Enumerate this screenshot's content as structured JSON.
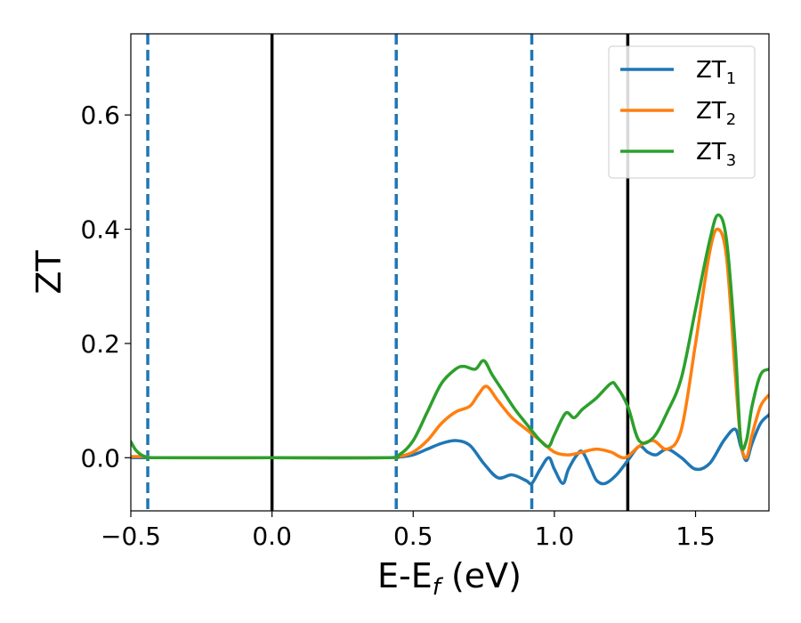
{
  "chart_data": {
    "type": "line",
    "xlabel_main": "E-E",
    "xlabel_sub": "f",
    "xlabel_unit": " (eV)",
    "ylabel": "ZT",
    "xlim": [
      -0.5,
      1.76
    ],
    "ylim": [
      -0.093,
      0.742
    ],
    "xticks": [
      -0.5,
      0.0,
      0.5,
      1.0,
      1.5
    ],
    "xtick_labels": [
      "−0.5",
      "0.0",
      "0.5",
      "1.0",
      "1.5"
    ],
    "yticks": [
      0.0,
      0.2,
      0.4,
      0.6
    ],
    "ytick_labels": [
      "0.0",
      "0.2",
      "0.4",
      "0.6"
    ],
    "grid": false,
    "legend_position": "top-right",
    "vlines": [
      {
        "x": -0.44,
        "style": "dashed",
        "color": "#1f77b4"
      },
      {
        "x": 0.0,
        "style": "solid",
        "color": "#000000"
      },
      {
        "x": 0.44,
        "style": "dashed",
        "color": "#1f77b4"
      },
      {
        "x": 0.92,
        "style": "dashed",
        "color": "#1f77b4"
      },
      {
        "x": 1.26,
        "style": "solid",
        "color": "#000000"
      }
    ],
    "series": [
      {
        "name_main": "ZT",
        "name_sub": "1",
        "color": "#1f77b4",
        "x": [
          -0.5,
          -0.45,
          -0.4,
          0.0,
          0.4,
          0.45,
          0.5,
          0.55,
          0.6,
          0.65,
          0.7,
          0.75,
          0.8,
          0.85,
          0.9,
          0.92,
          0.95,
          0.98,
          1.0,
          1.03,
          1.05,
          1.08,
          1.1,
          1.13,
          1.15,
          1.18,
          1.22,
          1.26,
          1.3,
          1.33,
          1.36,
          1.4,
          1.45,
          1.5,
          1.55,
          1.6,
          1.64,
          1.66,
          1.68,
          1.7,
          1.73,
          1.76
        ],
        "y": [
          0.0,
          0.0,
          0.0,
          0.0,
          0.0,
          0.001,
          0.005,
          0.015,
          0.025,
          0.03,
          0.022,
          -0.01,
          -0.035,
          -0.03,
          -0.04,
          -0.045,
          -0.02,
          0.0,
          -0.02,
          -0.045,
          -0.02,
          0.005,
          0.01,
          -0.02,
          -0.04,
          -0.045,
          -0.03,
          -0.005,
          0.02,
          0.01,
          0.005,
          0.015,
          0.0,
          -0.02,
          -0.01,
          0.03,
          0.05,
          0.02,
          -0.005,
          0.025,
          0.06,
          0.075
        ]
      },
      {
        "name_main": "ZT",
        "name_sub": "2",
        "color": "#ff7f0e",
        "x": [
          -0.5,
          -0.48,
          -0.45,
          -0.4,
          0.0,
          0.4,
          0.45,
          0.5,
          0.55,
          0.6,
          0.65,
          0.7,
          0.73,
          0.76,
          0.8,
          0.85,
          0.9,
          0.95,
          1.0,
          1.05,
          1.1,
          1.15,
          1.2,
          1.25,
          1.3,
          1.35,
          1.4,
          1.45,
          1.5,
          1.55,
          1.58,
          1.61,
          1.64,
          1.66,
          1.68,
          1.7,
          1.73,
          1.76
        ],
        "y": [
          0.002,
          0.002,
          0.002,
          0.0,
          0.0,
          0.0,
          0.002,
          0.01,
          0.03,
          0.06,
          0.08,
          0.09,
          0.11,
          0.125,
          0.1,
          0.07,
          0.05,
          0.03,
          0.01,
          0.005,
          0.01,
          0.015,
          0.01,
          0.0,
          0.02,
          0.03,
          0.015,
          0.05,
          0.2,
          0.36,
          0.4,
          0.35,
          0.15,
          0.03,
          0.0,
          0.04,
          0.09,
          0.11
        ]
      },
      {
        "name_main": "ZT",
        "name_sub": "3",
        "color": "#2ca02c",
        "x": [
          -0.5,
          -0.48,
          -0.45,
          -0.4,
          0.0,
          0.4,
          0.45,
          0.5,
          0.55,
          0.6,
          0.65,
          0.68,
          0.72,
          0.75,
          0.78,
          0.82,
          0.86,
          0.9,
          0.95,
          0.98,
          1.0,
          1.04,
          1.07,
          1.1,
          1.15,
          1.2,
          1.22,
          1.26,
          1.3,
          1.35,
          1.4,
          1.45,
          1.5,
          1.55,
          1.58,
          1.61,
          1.64,
          1.66,
          1.68,
          1.7,
          1.73,
          1.76
        ],
        "y": [
          0.028,
          0.012,
          0.002,
          0.0,
          0.0,
          0.0,
          0.005,
          0.03,
          0.08,
          0.13,
          0.155,
          0.16,
          0.155,
          0.17,
          0.145,
          0.115,
          0.085,
          0.06,
          0.03,
          0.02,
          0.04,
          0.078,
          0.07,
          0.085,
          0.105,
          0.13,
          0.125,
          0.09,
          0.03,
          0.035,
          0.08,
          0.14,
          0.26,
          0.38,
          0.425,
          0.38,
          0.2,
          0.03,
          0.03,
          0.09,
          0.145,
          0.155
        ]
      }
    ]
  }
}
